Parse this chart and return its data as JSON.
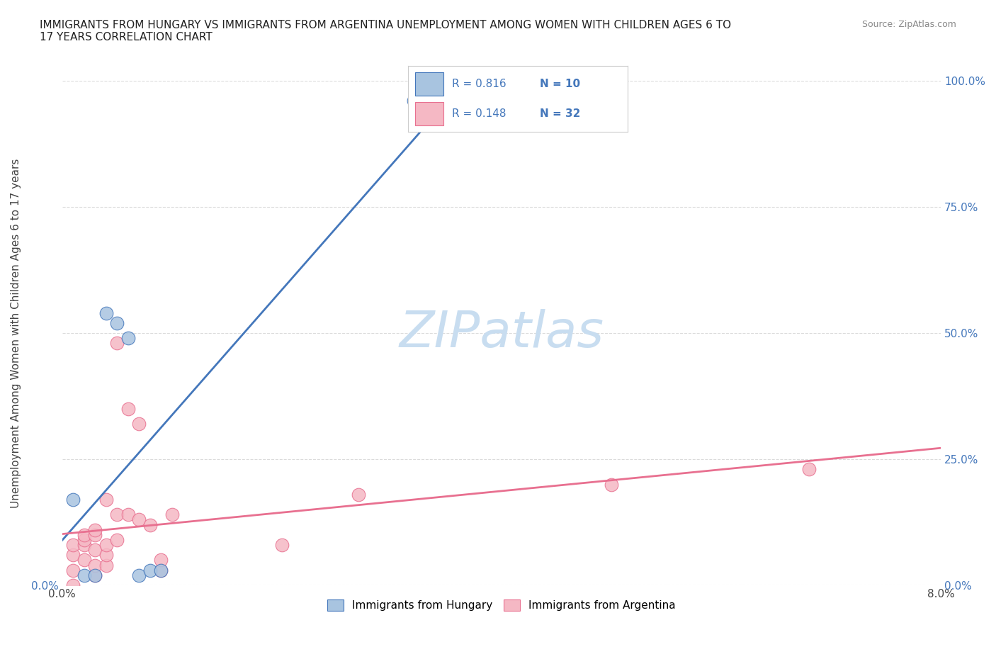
{
  "title": "IMMIGRANTS FROM HUNGARY VS IMMIGRANTS FROM ARGENTINA UNEMPLOYMENT AMONG WOMEN WITH CHILDREN AGES 6 TO\n17 YEARS CORRELATION CHART",
  "source": "Source: ZipAtlas.com",
  "xlabel": "",
  "ylabel": "Unemployment Among Women with Children Ages 6 to 17 years",
  "xlim": [
    0.0,
    0.08
  ],
  "ylim": [
    0.0,
    1.0
  ],
  "xticks": [
    0.0,
    0.02,
    0.04,
    0.06,
    0.08
  ],
  "xticklabels": [
    "0.0%",
    "",
    "",
    "",
    "8.0%"
  ],
  "yticks": [
    0.0,
    0.25,
    0.5,
    0.75,
    1.0
  ],
  "yticklabels": [
    "0.0%",
    "25.0%",
    "50.0%",
    "75.0%",
    "100.0%"
  ],
  "hungary_color": "#a8c4e0",
  "argentina_color": "#f5b8c4",
  "hungary_line_color": "#4477bb",
  "argentina_line_color": "#e87090",
  "r_hungary": 0.816,
  "n_hungary": 10,
  "r_argentina": 0.148,
  "n_argentina": 32,
  "watermark": "ZIPatlas",
  "watermark_color": "#c8ddf0",
  "hungary_x": [
    0.001,
    0.002,
    0.003,
    0.004,
    0.005,
    0.006,
    0.007,
    0.008,
    0.009,
    0.032
  ],
  "hungary_y": [
    0.17,
    0.02,
    0.02,
    0.54,
    0.52,
    0.49,
    0.02,
    0.03,
    0.03,
    0.96
  ],
  "argentina_x": [
    0.001,
    0.001,
    0.001,
    0.001,
    0.002,
    0.002,
    0.002,
    0.002,
    0.003,
    0.003,
    0.003,
    0.003,
    0.003,
    0.004,
    0.004,
    0.004,
    0.004,
    0.005,
    0.005,
    0.005,
    0.006,
    0.006,
    0.007,
    0.007,
    0.008,
    0.009,
    0.009,
    0.01,
    0.02,
    0.027,
    0.05,
    0.068
  ],
  "argentina_y": [
    0.0,
    0.03,
    0.06,
    0.08,
    0.05,
    0.08,
    0.09,
    0.1,
    0.02,
    0.04,
    0.07,
    0.1,
    0.11,
    0.04,
    0.06,
    0.08,
    0.17,
    0.09,
    0.14,
    0.48,
    0.14,
    0.35,
    0.13,
    0.32,
    0.12,
    0.03,
    0.05,
    0.14,
    0.08,
    0.18,
    0.2,
    0.23
  ]
}
